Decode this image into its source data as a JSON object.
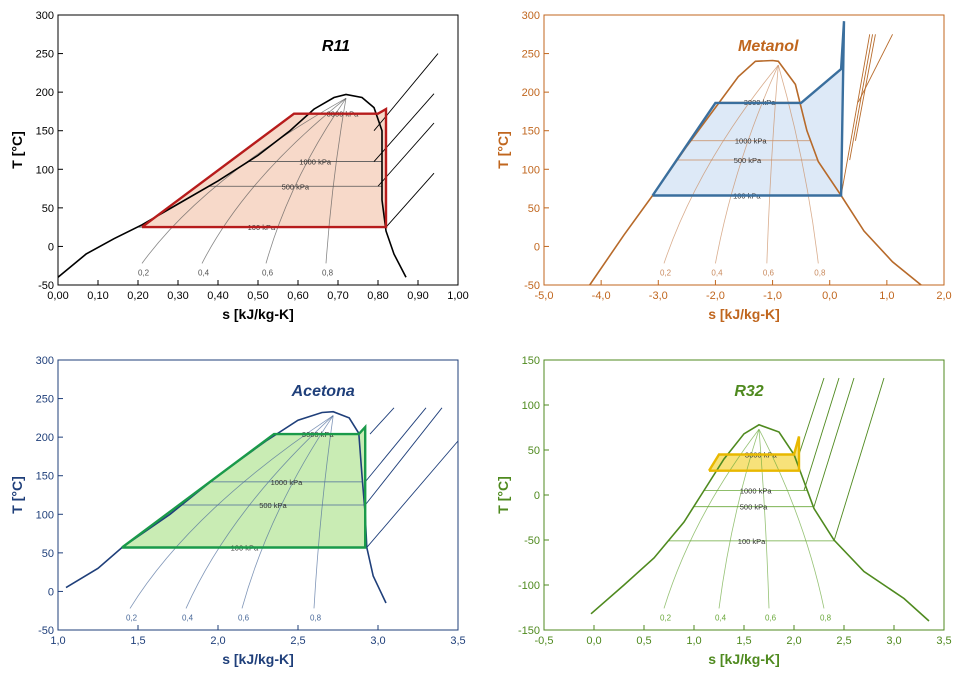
{
  "chart_data": [
    {
      "type": "line",
      "subtitle": "R11",
      "xlabel": "s [kJ/kg-K]",
      "ylabel": "T [°C]",
      "xlim": [
        0.0,
        1.0
      ],
      "ylim": [
        -50,
        300
      ],
      "xticks": [
        "0,00",
        "0,10",
        "0,20",
        "0,30",
        "0,40",
        "0,50",
        "0,60",
        "0,70",
        "0,80",
        "0,90",
        "1,00"
      ],
      "yticks": [
        "-50",
        "0",
        "50",
        "100",
        "150",
        "200",
        "250",
        "300"
      ],
      "colors": {
        "axis": "#000000",
        "accent": "#b71c1c",
        "fill": "#f7d9c9",
        "curve": "#000000",
        "iso": "#555555"
      },
      "dome": {
        "left": [
          [
            0.0,
            -40
          ],
          [
            0.07,
            -10
          ],
          [
            0.14,
            10
          ],
          [
            0.21,
            28
          ],
          [
            0.3,
            55
          ],
          [
            0.4,
            85
          ],
          [
            0.5,
            118
          ],
          [
            0.58,
            150
          ],
          [
            0.64,
            178
          ],
          [
            0.69,
            193
          ],
          [
            0.72,
            197
          ]
        ],
        "right": [
          [
            0.72,
            197
          ],
          [
            0.76,
            193
          ],
          [
            0.79,
            180
          ],
          [
            0.81,
            150
          ],
          [
            0.81,
            110
          ],
          [
            0.81,
            60
          ],
          [
            0.82,
            20
          ],
          [
            0.84,
            -10
          ],
          [
            0.87,
            -40
          ]
        ]
      },
      "isobar_labels": [
        "100 kPa",
        "500 kPa",
        "1000 kPa",
        "3000 kPa"
      ],
      "isobar_temps": [
        25,
        78,
        110,
        172
      ],
      "quality_labels": [
        "0,2",
        "0,4",
        "0,6",
        "0,8"
      ],
      "quality_x": [
        0.21,
        0.36,
        0.52,
        0.67
      ],
      "cycle": [
        [
          0.21,
          25
        ],
        [
          0.59,
          172
        ],
        [
          0.8,
          172
        ],
        [
          0.82,
          178
        ],
        [
          0.82,
          25
        ],
        [
          0.21,
          25
        ]
      ],
      "superheat_lines": [
        [
          [
            0.82,
            25
          ],
          [
            0.94,
            95
          ]
        ],
        [
          [
            0.8,
            78
          ],
          [
            0.94,
            160
          ]
        ],
        [
          [
            0.79,
            110
          ],
          [
            0.94,
            198
          ]
        ],
        [
          [
            0.79,
            150
          ],
          [
            0.95,
            250
          ]
        ]
      ]
    },
    {
      "type": "line",
      "subtitle": "Metanol",
      "xlabel": "s [kJ/kg-K]",
      "ylabel": "T [°C]",
      "xlim": [
        -5.0,
        2.0
      ],
      "ylim": [
        -50,
        300
      ],
      "xticks": [
        "-5,0",
        "-4,0",
        "-3,0",
        "-2,0",
        "-1,0",
        "0,0",
        "1,0",
        "2,0"
      ],
      "yticks": [
        "-50",
        "0",
        "50",
        "100",
        "150",
        "200",
        "250",
        "300"
      ],
      "colors": {
        "axis": "#c0661e",
        "accent": "#3a6f9e",
        "fill": "#dde9f7",
        "curve": "#b76a2a",
        "iso": "#c98a5e"
      },
      "dome": {
        "left": [
          [
            -4.2,
            -50
          ],
          [
            -3.6,
            15
          ],
          [
            -3.1,
            66
          ],
          [
            -2.5,
            130
          ],
          [
            -2.0,
            180
          ],
          [
            -1.6,
            220
          ],
          [
            -1.3,
            240
          ],
          [
            -1.0,
            241
          ],
          [
            -0.9,
            240
          ]
        ],
        "right": [
          [
            -0.9,
            240
          ],
          [
            -0.6,
            210
          ],
          [
            -0.4,
            150
          ],
          [
            -0.2,
            110
          ],
          [
            0.2,
            66
          ],
          [
            0.6,
            20
          ],
          [
            1.1,
            -20
          ],
          [
            1.6,
            -50
          ]
        ]
      },
      "isobar_labels": [
        "100 kPa",
        "500 kPa",
        "1000 kPa",
        "3000 kPa"
      ],
      "isobar_temps": [
        66,
        112,
        137,
        187
      ],
      "quality_labels": [
        "0,2",
        "0,4",
        "0,6",
        "0,8"
      ],
      "quality_x": [
        -2.9,
        -2.0,
        -1.1,
        -0.2
      ],
      "cycle": [
        [
          -3.1,
          66
        ],
        [
          -2.0,
          186
        ],
        [
          -0.5,
          186
        ],
        [
          0.2,
          230
        ],
        [
          0.25,
          292
        ],
        [
          0.2,
          66
        ],
        [
          -3.1,
          66
        ]
      ],
      "superheat_lines": [
        [
          [
            0.2,
            66
          ],
          [
            0.7,
            275
          ]
        ],
        [
          [
            0.35,
            112
          ],
          [
            0.75,
            275
          ]
        ],
        [
          [
            0.45,
            137
          ],
          [
            0.8,
            275
          ]
        ],
        [
          [
            0.5,
            187
          ],
          [
            1.1,
            275
          ]
        ]
      ]
    },
    {
      "type": "line",
      "subtitle": "Acetona",
      "xlabel": "s [kJ/kg-K]",
      "ylabel": "T [°C]",
      "xlim": [
        1.0,
        3.5
      ],
      "ylim": [
        -50,
        300
      ],
      "xticks": [
        "1,0",
        "1,5",
        "2,0",
        "2,5",
        "3,0",
        "3,5"
      ],
      "yticks": [
        "-50",
        "0",
        "50",
        "100",
        "150",
        "200",
        "250",
        "300"
      ],
      "colors": {
        "axis": "#1f3f7a",
        "accent": "#1a9a4a",
        "fill": "#c9ecb4",
        "curve": "#1f3f7a",
        "iso": "#4a6a9a"
      },
      "dome": {
        "left": [
          [
            1.05,
            5
          ],
          [
            1.25,
            30
          ],
          [
            1.4,
            57
          ],
          [
            1.7,
            100
          ],
          [
            2.0,
            150
          ],
          [
            2.3,
            195
          ],
          [
            2.5,
            222
          ],
          [
            2.65,
            232
          ],
          [
            2.72,
            233
          ]
        ],
        "right": [
          [
            2.72,
            233
          ],
          [
            2.82,
            225
          ],
          [
            2.88,
            205
          ],
          [
            2.9,
            150
          ],
          [
            2.92,
            100
          ],
          [
            2.93,
            57
          ],
          [
            2.97,
            20
          ],
          [
            3.05,
            -15
          ]
        ]
      },
      "isobar_labels": [
        "100 kPa",
        "500 kPa",
        "1000 kPa",
        "3000 kPa"
      ],
      "isobar_temps": [
        57,
        112,
        142,
        204
      ],
      "quality_labels": [
        "0,2",
        "0,4",
        "0,6",
        "0,8"
      ],
      "quality_x": [
        1.45,
        1.8,
        2.15,
        2.6
      ],
      "cycle": [
        [
          1.4,
          57
        ],
        [
          2.35,
          204
        ],
        [
          2.88,
          204
        ],
        [
          2.92,
          213
        ],
        [
          2.92,
          57
        ],
        [
          1.4,
          57
        ]
      ],
      "superheat_lines": [
        [
          [
            2.93,
            57
          ],
          [
            3.5,
            195
          ]
        ],
        [
          [
            2.92,
            112
          ],
          [
            3.4,
            238
          ]
        ],
        [
          [
            2.92,
            142
          ],
          [
            3.3,
            238
          ]
        ],
        [
          [
            2.95,
            204
          ],
          [
            3.1,
            238
          ]
        ]
      ]
    },
    {
      "type": "line",
      "subtitle": "R32",
      "xlabel": "s [kJ/kg-K]",
      "ylabel": "T [°C]",
      "xlim": [
        -0.5,
        3.5
      ],
      "ylim": [
        -150,
        150
      ],
      "xticks": [
        "-0,5",
        "0,0",
        "0,5",
        "1,0",
        "1,5",
        "2,0",
        "2,5",
        "3,0",
        "3,5"
      ],
      "yticks": [
        "-150",
        "-100",
        "-50",
        "0",
        "50",
        "100",
        "150"
      ],
      "colors": {
        "axis": "#4f8a1f",
        "accent": "#e8b800",
        "fill": "#f7e27a",
        "curve": "#4f8a1f",
        "iso": "#6aa83a"
      },
      "dome": {
        "left": [
          [
            -0.03,
            -132
          ],
          [
            0.3,
            -100
          ],
          [
            0.6,
            -70
          ],
          [
            0.9,
            -30
          ],
          [
            1.1,
            5
          ],
          [
            1.3,
            40
          ],
          [
            1.5,
            68
          ],
          [
            1.65,
            78
          ]
        ],
        "right": [
          [
            1.65,
            78
          ],
          [
            1.85,
            70
          ],
          [
            2.0,
            45
          ],
          [
            2.1,
            15
          ],
          [
            2.2,
            -15
          ],
          [
            2.4,
            -50
          ],
          [
            2.7,
            -85
          ],
          [
            3.1,
            -115
          ],
          [
            3.35,
            -140
          ]
        ]
      },
      "isobar_labels": [
        "100 kPa",
        "500 kPa",
        "1000 kPa",
        "3000 kPa"
      ],
      "isobar_temps": [
        -51,
        -13,
        5,
        45
      ],
      "quality_labels": [
        "0,2",
        "0,4",
        "0,6",
        "0,8"
      ],
      "quality_x": [
        0.7,
        1.25,
        1.75,
        2.3
      ],
      "cycle": [
        [
          1.15,
          27
        ],
        [
          1.25,
          45
        ],
        [
          2.0,
          45
        ],
        [
          2.05,
          65
        ],
        [
          2.05,
          27
        ],
        [
          1.15,
          27
        ]
      ],
      "superheat_lines": [
        [
          [
            2.4,
            -51
          ],
          [
            2.9,
            130
          ]
        ],
        [
          [
            2.2,
            -13
          ],
          [
            2.6,
            130
          ]
        ],
        [
          [
            2.1,
            5
          ],
          [
            2.45,
            130
          ]
        ],
        [
          [
            2.05,
            45
          ],
          [
            2.3,
            130
          ]
        ]
      ]
    }
  ]
}
